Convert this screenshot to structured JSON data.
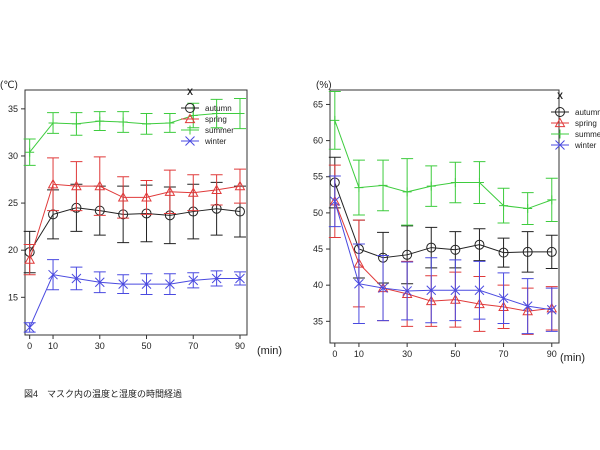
{
  "caption": "図4　マスク内の温度と湿度の時間経過",
  "chart_data": [
    {
      "type": "line",
      "ylabel": "(℃)",
      "xlabel": "(min)",
      "x": [
        0,
        10,
        20,
        30,
        40,
        50,
        60,
        70,
        80,
        90
      ],
      "xticks": [
        "0",
        "10",
        "30",
        "50",
        "70",
        "90"
      ],
      "xtick_values": [
        0,
        10,
        30,
        50,
        70,
        90
      ],
      "yticks": [
        15,
        20,
        25,
        30,
        35
      ],
      "ylim": [
        11,
        37
      ],
      "legend_title": "X",
      "legend_position": "top-right",
      "error_bars": true,
      "series": [
        {
          "name": "autumn",
          "color": "#222222",
          "marker": "circle",
          "values": [
            19.8,
            23.8,
            24.5,
            24.2,
            23.8,
            23.9,
            23.7,
            24.1,
            24.4,
            24.1
          ],
          "errors": [
            2.2,
            2.6,
            2.5,
            2.6,
            3.0,
            3.0,
            3.0,
            2.9,
            2.8,
            2.7
          ]
        },
        {
          "name": "spring",
          "color": "#e03a3a",
          "marker": "triangle",
          "values": [
            19.0,
            27.0,
            26.8,
            26.8,
            25.6,
            25.6,
            26.2,
            26.1,
            26.4,
            26.8
          ],
          "errors": [
            1.6,
            2.8,
            2.6,
            3.1,
            2.2,
            1.8,
            2.3,
            1.9,
            1.6,
            1.8
          ]
        },
        {
          "name": "summer",
          "color": "#3ecc3e",
          "marker": "plus",
          "values": [
            30.4,
            33.5,
            33.4,
            33.7,
            33.6,
            33.4,
            33.5,
            34.3,
            34.5,
            34.5
          ],
          "errors": [
            1.4,
            1.1,
            1.2,
            1.0,
            1.1,
            1.1,
            1.0,
            1.3,
            1.5,
            1.6
          ]
        },
        {
          "name": "winter",
          "color": "#4a4ae0",
          "marker": "x",
          "values": [
            11.8,
            17.4,
            17.0,
            16.6,
            16.4,
            16.4,
            16.4,
            16.8,
            17.0,
            17.0
          ],
          "errors": [
            0.5,
            1.6,
            1.2,
            1.1,
            1.0,
            1.1,
            1.1,
            0.8,
            0.8,
            0.7
          ]
        }
      ]
    },
    {
      "type": "line",
      "ylabel": "(%)",
      "xlabel": "(min)",
      "x": [
        0,
        10,
        20,
        30,
        40,
        50,
        60,
        70,
        80,
        90
      ],
      "xticks": [
        "0",
        "10",
        "30",
        "50",
        "70",
        "90"
      ],
      "xtick_values": [
        0,
        10,
        30,
        50,
        70,
        90
      ],
      "yticks": [
        35,
        40,
        45,
        50,
        55,
        60,
        65
      ],
      "ylim": [
        32,
        67
      ],
      "legend_title": "X",
      "legend_position": "top-right",
      "error_bars": true,
      "series": [
        {
          "name": "autumn",
          "color": "#222222",
          "marker": "circle",
          "values": [
            54.2,
            45.0,
            43.8,
            44.2,
            45.2,
            44.9,
            45.6,
            44.5,
            44.6,
            44.6
          ],
          "errors": [
            3.5,
            4.0,
            3.5,
            4.0,
            2.8,
            2.5,
            2.2,
            2.0,
            2.8,
            2.3
          ]
        },
        {
          "name": "spring",
          "color": "#e03a3a",
          "marker": "triangle",
          "values": [
            51.6,
            43.0,
            39.6,
            38.8,
            37.8,
            38.0,
            37.4,
            37.0,
            36.4,
            36.8
          ],
          "errors": [
            5.0,
            6.0,
            4.5,
            4.5,
            3.5,
            3.8,
            3.8,
            3.0,
            3.2,
            3.0
          ]
        },
        {
          "name": "summer",
          "color": "#3ecc3e",
          "marker": "plus",
          "values": [
            62.8,
            53.5,
            53.8,
            52.9,
            53.7,
            54.2,
            54.2,
            51.0,
            50.6,
            51.8
          ],
          "errors": [
            4.0,
            3.8,
            3.5,
            4.6,
            2.8,
            2.8,
            2.9,
            2.4,
            2.2,
            3.0
          ]
        },
        {
          "name": "winter",
          "color": "#4a4ae0",
          "marker": "x",
          "values": [
            51.6,
            40.2,
            39.6,
            39.2,
            39.3,
            39.3,
            39.3,
            38.2,
            37.1,
            36.6
          ],
          "errors": [
            3.5,
            5.5,
            4.5,
            4.0,
            4.5,
            4.2,
            4.0,
            3.5,
            3.8,
            3.0
          ]
        }
      ]
    }
  ]
}
